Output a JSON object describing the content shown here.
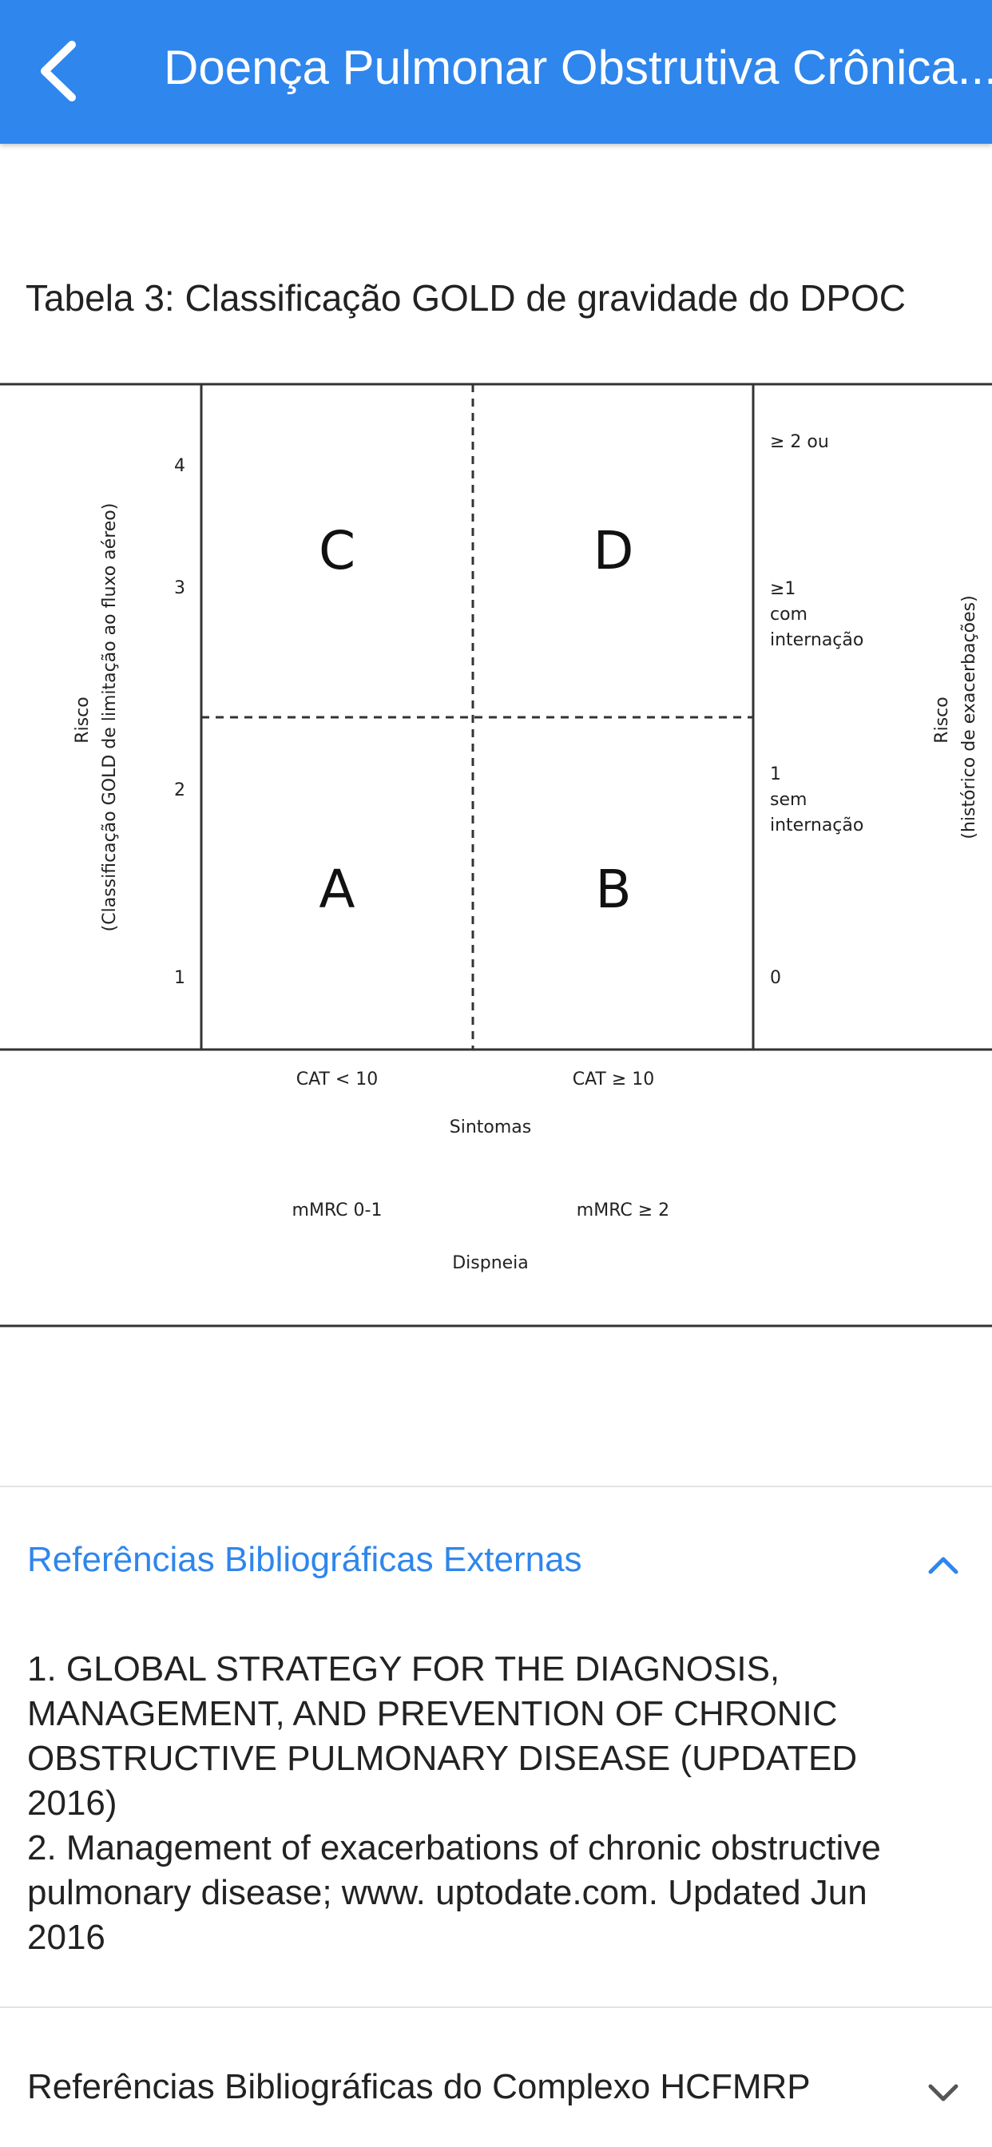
{
  "header": {
    "title": "Doença Pulmonar Obstrutiva Crônica...",
    "back_icon": "chevron-left-icon"
  },
  "table": {
    "caption": "Tabela 3: Classificação GOLD de gravidade do DPOC",
    "left_axis": {
      "line1": "Risco",
      "line2": "(Classificação GOLD de limitação ao fluxo aéreo)",
      "ticks": [
        "4",
        "3",
        "2",
        "1"
      ]
    },
    "right_axis": {
      "line1": "Risco",
      "line2": "(histórico de exacerbações)"
    },
    "quadrants": {
      "top_left": "C",
      "top_right": "D",
      "bottom_left": "A",
      "bottom_right": "B"
    },
    "right_labels": {
      "l1": "≥ 2 ou",
      "l2a": "≥1",
      "l2b": "com",
      "l2c": "internação",
      "l3a": "1",
      "l3b": "sem",
      "l3c": "internação",
      "l4": "0"
    },
    "bottom": {
      "cat_low": "CAT < 10",
      "cat_high": "CAT ≥ 10",
      "symptoms": "Sintomas",
      "mmrc_low": "mMRC 0-1",
      "mmrc_high": "mMRC ≥ 2",
      "dyspnea": "Dispneia"
    }
  },
  "accordion_external": {
    "title": "Referências Bibliográficas Externas",
    "icon": "chevron-up-icon",
    "refs": [
      "1. GLOBAL STRATEGY FOR THE DIAGNOSIS, MANAGEMENT, AND PREVENTION OF CHRONIC OBSTRUCTIVE PULMONARY DISEASE (UPDATED 2016)",
      "2. Management of exacerbations of chronic obstructive pulmonary disease; www. uptodate.com. Updated Jun 2016"
    ]
  },
  "accordion_hcfmrp": {
    "title": "Referências Bibliográficas do Complexo HCFMRP",
    "icon": "chevron-down-icon"
  },
  "colors": {
    "header_bg": "#2f86ec",
    "accent": "#2f86ec"
  }
}
